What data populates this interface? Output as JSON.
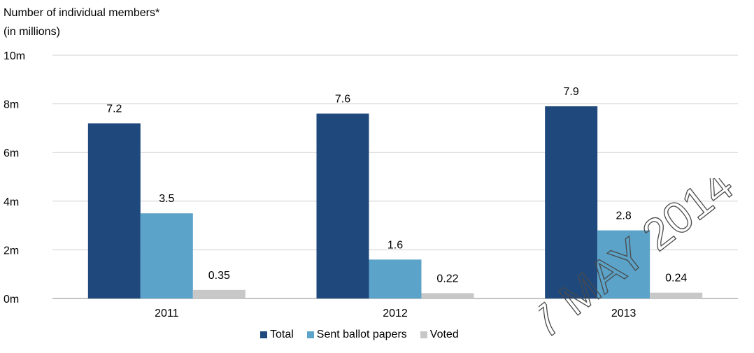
{
  "chart_data": {
    "type": "bar",
    "ylabel_line1": "Number of individual members*",
    "ylabel_line2": "(in millions)",
    "categories": [
      "2011",
      "2012",
      "2013"
    ],
    "ylim": [
      0,
      10
    ],
    "yticks": [
      {
        "value": 0,
        "label": "0m"
      },
      {
        "value": 2,
        "label": "2m"
      },
      {
        "value": 4,
        "label": "4m"
      },
      {
        "value": 6,
        "label": "6m"
      },
      {
        "value": 8,
        "label": "8m"
      },
      {
        "value": 10,
        "label": "10m"
      }
    ],
    "grid": true,
    "legend_position": "bottom-center",
    "series": [
      {
        "name": "Total",
        "color": "#1f497d",
        "values": [
          7.2,
          7.6,
          7.9
        ],
        "labels": [
          "7.2",
          "7.6",
          "7.9"
        ]
      },
      {
        "name": "Sent ballot papers",
        "color": "#5ba3c9",
        "values": [
          3.5,
          1.6,
          2.8
        ],
        "labels": [
          "3.5",
          "1.6",
          "2.8"
        ]
      },
      {
        "name": "Voted",
        "color": "#c8c8c8",
        "values": [
          0.35,
          0.22,
          0.24
        ],
        "labels": [
          "0.35",
          "0.22",
          "0.24"
        ]
      }
    ]
  },
  "watermark": {
    "text": "7 MAY 2014"
  }
}
